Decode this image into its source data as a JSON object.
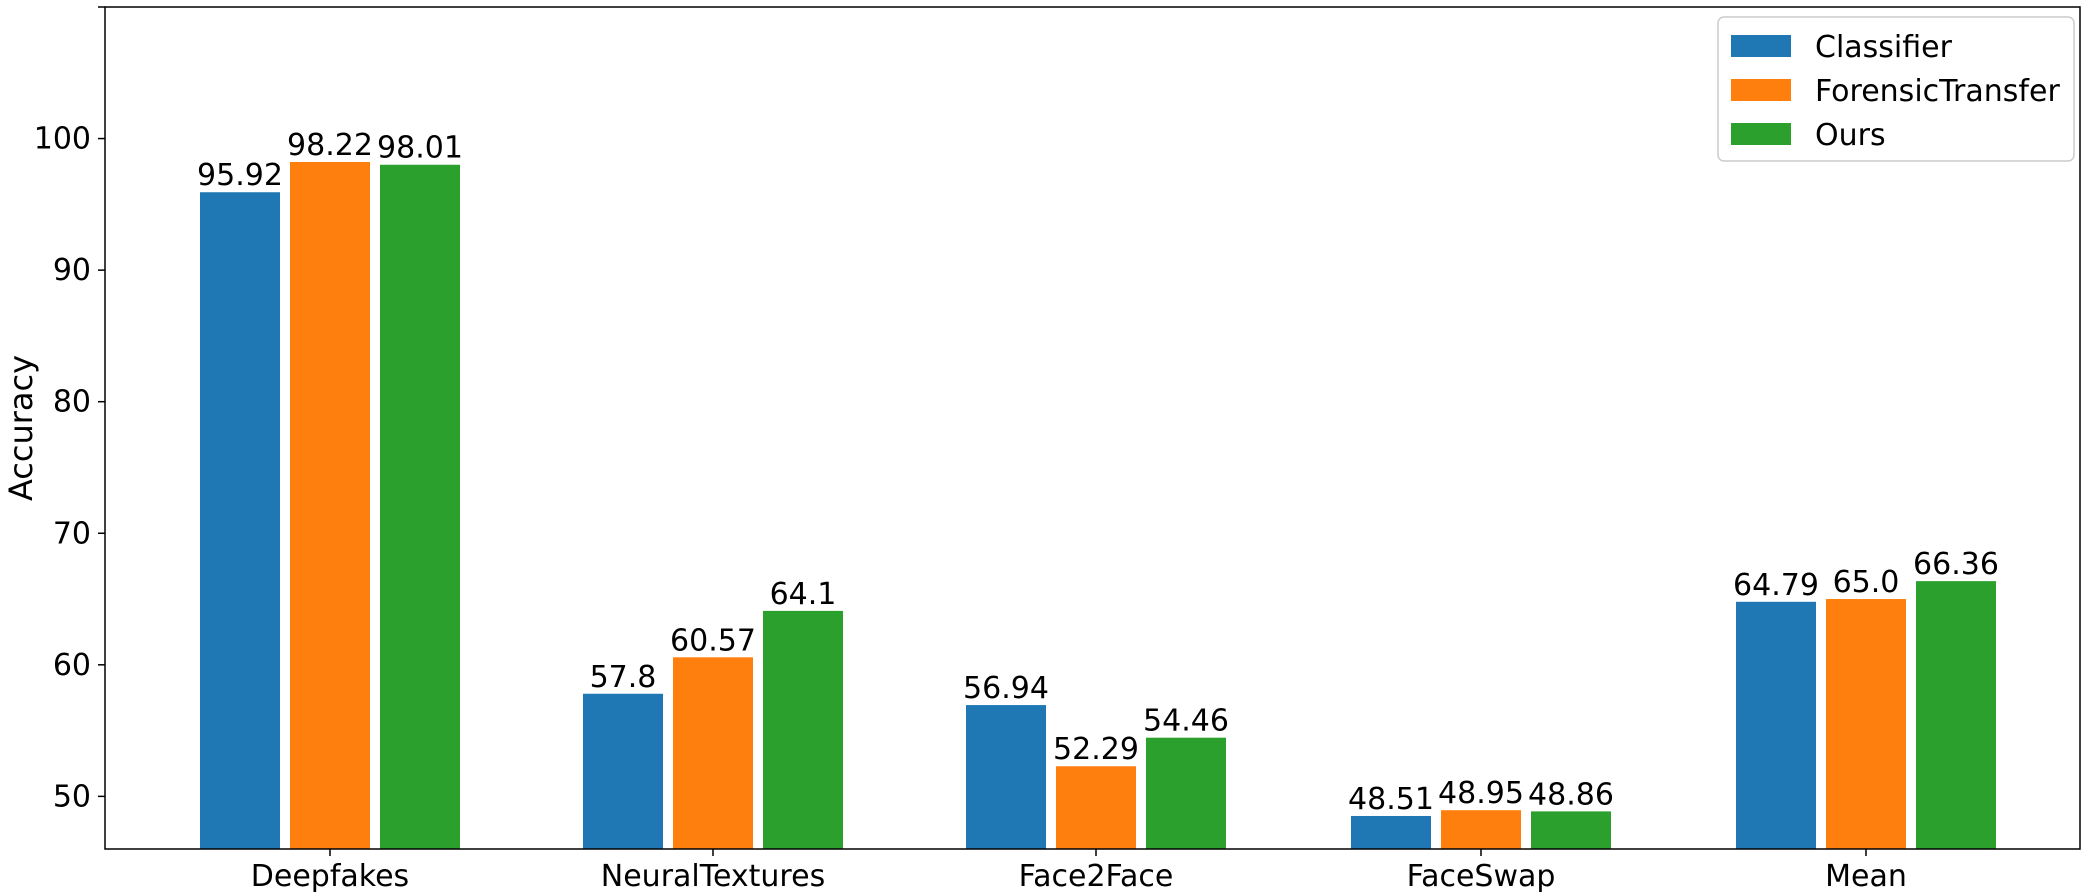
{
  "chart_data": {
    "type": "bar",
    "categories": [
      "Deepfakes",
      "NeuralTextures",
      "Face2Face",
      "FaceSwap",
      "Mean"
    ],
    "series": [
      {
        "name": "Classifier",
        "color": "#1f77b4",
        "values": [
          95.92,
          57.8,
          56.94,
          48.51,
          64.79
        ],
        "labels": [
          "95.92",
          "57.8",
          "56.94",
          "48.51",
          "64.79"
        ]
      },
      {
        "name": "ForensicTransfer",
        "color": "#ff7f0e",
        "values": [
          98.22,
          60.57,
          52.29,
          48.95,
          65.0
        ],
        "labels": [
          "98.22",
          "60.57",
          "52.29",
          "48.95",
          "65.0"
        ]
      },
      {
        "name": "Ours",
        "color": "#2ca02c",
        "values": [
          98.01,
          64.1,
          54.46,
          48.86,
          66.36
        ],
        "labels": [
          "98.01",
          "64.1",
          "54.46",
          "48.86",
          "66.36"
        ]
      }
    ],
    "title": "",
    "xlabel": "",
    "ylabel": "Accuracy",
    "ylim": [
      46,
      110
    ],
    "yticks": [
      50,
      60,
      70,
      80,
      90,
      100
    ],
    "grid": false,
    "legend": "top-right"
  }
}
